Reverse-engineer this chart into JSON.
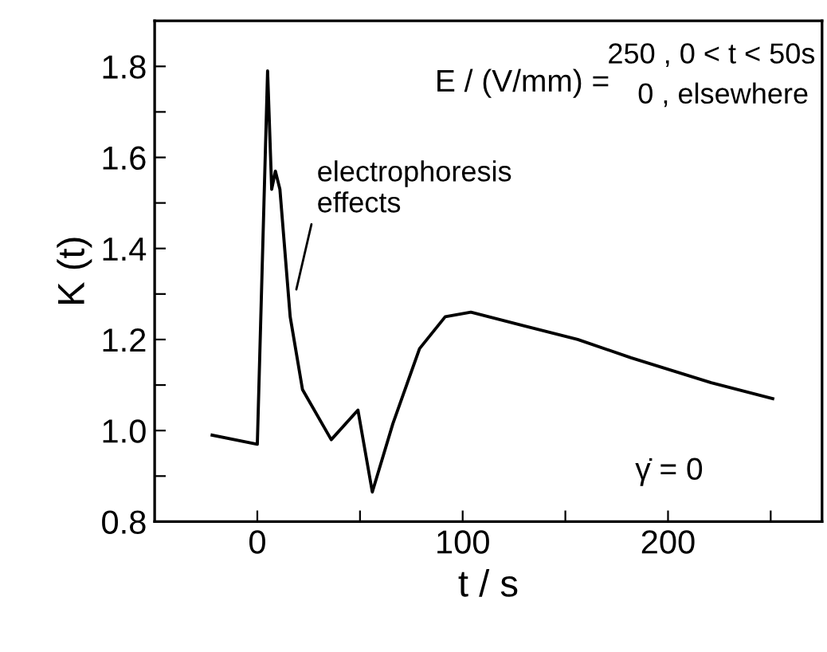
{
  "chart_data": {
    "type": "line",
    "xlabel": "t / s",
    "ylabel": "K (t)",
    "x": [
      -22,
      0,
      5,
      7,
      8.8,
      11,
      16,
      22,
      36,
      49,
      56,
      66,
      79,
      91.5,
      104,
      130,
      156,
      182,
      221,
      251
    ],
    "series": [
      {
        "color": "#000000",
        "values": [
          0.99,
          0.97,
          1.79,
          1.53,
          1.57,
          1.53,
          1.25,
          1.09,
          0.98,
          1.045,
          0.865,
          1.015,
          1.18,
          1.25,
          1.26,
          1.23,
          1.2,
          1.16,
          1.105,
          1.07
        ]
      }
    ],
    "xlim": [
      -50,
      275
    ],
    "ylim": [
      0.8,
      1.9
    ],
    "xticks": [
      0,
      {
        "value": 50,
        "label": null
      },
      100,
      {
        "value": 150,
        "label": null
      },
      200,
      {
        "value": 250,
        "label": null
      }
    ],
    "yticks": [
      {
        "value": 0.8,
        "label": "0.8"
      },
      {
        "value": 0.9,
        "label": null
      },
      {
        "value": 1.0,
        "label": "1.0"
      },
      {
        "value": 1.1,
        "label": null
      },
      {
        "value": 1.2,
        "label": "1.2"
      },
      {
        "value": 1.3,
        "label": null
      },
      {
        "value": 1.4,
        "label": "1.4"
      },
      {
        "value": 1.5,
        "label": null
      },
      {
        "value": 1.6,
        "label": "1.6"
      },
      {
        "value": 1.7,
        "label": null
      },
      {
        "value": 1.8,
        "label": "1.8"
      }
    ],
    "grid": false,
    "legend": false,
    "marker": "none",
    "line_style": "solid",
    "annotations": [
      "E / (V/mm) =",
      "250 , 0 < t < 50s",
      "0 , elsewhere",
      {
        "text": "electrophoresis\neffects",
        "x": 19,
        "y": 1.31
      },
      "γ̇ = 0"
    ]
  }
}
